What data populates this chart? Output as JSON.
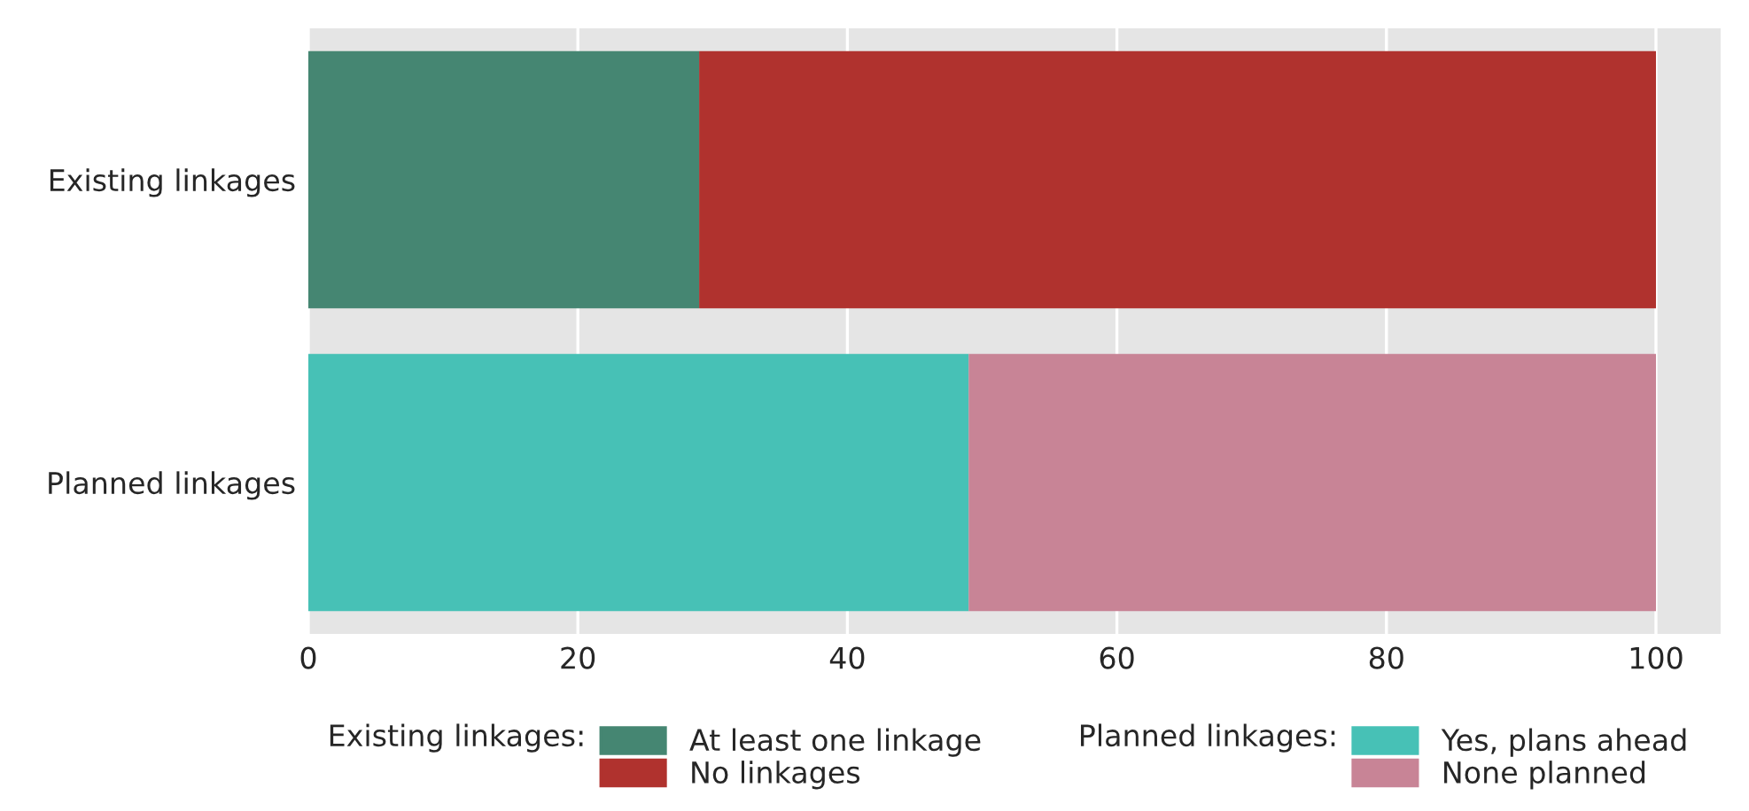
{
  "chart_data": {
    "type": "bar",
    "orientation": "horizontal",
    "stacked": true,
    "categories": [
      "Existing linkages",
      "Planned linkages"
    ],
    "series": [
      {
        "name": "At least one linkage",
        "color": "#458672",
        "values": [
          29,
          null
        ]
      },
      {
        "name": "No linkages",
        "color": "#b0322e",
        "values": [
          71,
          null
        ]
      },
      {
        "name": "Yes, plans ahead",
        "color": "#47c1b6",
        "values": [
          null,
          49
        ]
      },
      {
        "name": "None planned",
        "color": "#c88496",
        "values": [
          null,
          51
        ]
      }
    ],
    "xlim": [
      0,
      104.8
    ],
    "xticks": [
      0,
      20,
      40,
      60,
      80,
      100
    ],
    "grid": "x",
    "legend": "bottom",
    "annotations": [
      "Existing linkages:",
      "Planned linkages:"
    ]
  }
}
